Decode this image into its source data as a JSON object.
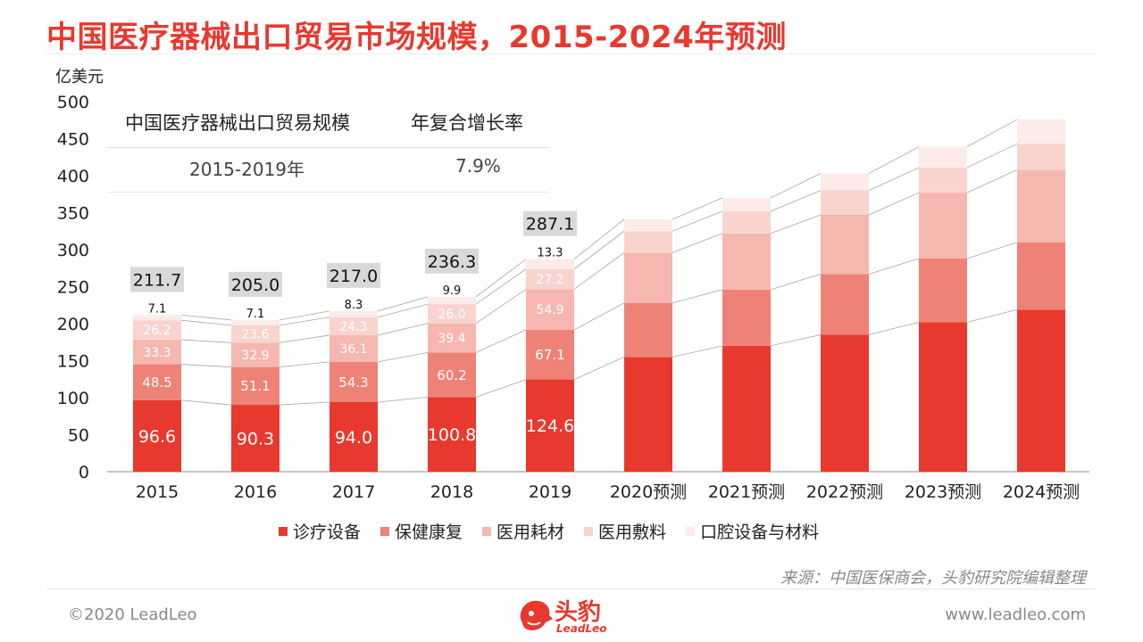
{
  "title": "中国医疗器械出口贸易市场规模，2015-2024年预测",
  "cagr": {
    "label": "中国医疗器械出口贸易规模",
    "rate_header": "年复合增长率",
    "period": "2015-2019年",
    "rate": "7.9%"
  },
  "source": "来源：中国医保商会，头豹研究院编辑整理",
  "footer": {
    "copyright": "©2020 LeadLeo",
    "website": "www.leadleo.com"
  },
  "logo": {
    "name": "头豹",
    "sub": "LeadLeo"
  },
  "colors": {
    "diagnosis": "#e8392e",
    "rehab": "#ee8277",
    "consumables": "#f6b7b0",
    "dressing": "#f9d4cf",
    "dental": "#fcebe9",
    "title": "#e8392e"
  },
  "chart_data": {
    "type": "bar",
    "stacked": true,
    "ylabel": "亿美元",
    "ylim": [
      0,
      500
    ],
    "yticks": [
      0,
      50,
      100,
      150,
      200,
      250,
      300,
      350,
      400,
      450,
      500
    ],
    "categories": [
      "2015",
      "2016",
      "2017",
      "2018",
      "2019",
      "2020预测",
      "2021预测",
      "2022预测",
      "2023预测",
      "2024预测"
    ],
    "series": [
      {
        "name": "诊疗设备",
        "color": "#e8392e",
        "values": [
          96.6,
          90.3,
          94.0,
          100.8,
          124.6,
          155,
          170,
          185,
          202,
          219
        ]
      },
      {
        "name": "保健康复",
        "color": "#ee8277",
        "values": [
          48.5,
          51.1,
          54.3,
          60.2,
          67.1,
          73,
          76,
          82,
          86,
          91
        ]
      },
      {
        "name": "医用耗材",
        "color": "#f6b7b0",
        "values": [
          33.3,
          32.9,
          36.1,
          39.4,
          54.9,
          68,
          76,
          80,
          89,
          98
        ]
      },
      {
        "name": "医用敷料",
        "color": "#f9d4cf",
        "values": [
          26.2,
          23.6,
          24.3,
          26.0,
          27.2,
          29,
          30,
          33,
          34,
          35
        ]
      },
      {
        "name": "口腔设备与材料",
        "color": "#fcebe9",
        "values": [
          7.1,
          7.1,
          8.3,
          9.9,
          13.3,
          16,
          18,
          23,
          28,
          33
        ]
      }
    ],
    "totals": [
      "211.7",
      "205.0",
      "217.0",
      "236.3",
      "287.1",
      null,
      null,
      null,
      null,
      null
    ],
    "labeled_points": 5,
    "grid": false,
    "legend": "bottom"
  }
}
